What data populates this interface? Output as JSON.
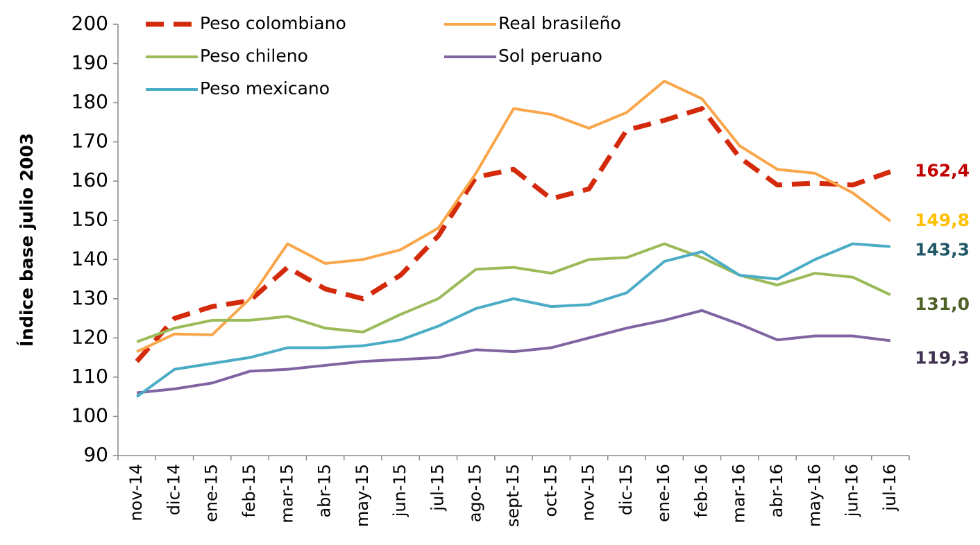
{
  "chart_data": {
    "type": "line",
    "y_label": "Índice base julio 2003",
    "categories": [
      "nov-14",
      "dic-14",
      "ene-15",
      "feb-15",
      "mar-15",
      "abr-15",
      "may-15",
      "jun-15",
      "jul-15",
      "ago-15",
      "sept-15",
      "oct-15",
      "nov-15",
      "dic-15",
      "ene-16",
      "feb-16",
      "mar-16",
      "abr-16",
      "may-16",
      "jun-16",
      "jul-16"
    ],
    "ylim": [
      90,
      200
    ],
    "yticks": [
      90,
      100,
      110,
      120,
      130,
      140,
      150,
      160,
      170,
      180,
      190,
      200
    ],
    "series": [
      {
        "name": "Peso colombiano",
        "color": "#d42a0c",
        "dash": true,
        "label_color": "#c00000",
        "values": [
          114,
          125,
          128,
          129.5,
          138,
          132.5,
          130,
          136,
          146,
          161,
          163,
          155.5,
          158,
          173,
          175.5,
          178.5,
          166,
          159,
          159.5,
          159,
          162.4
        ],
        "value_labels": [
          null,
          null,
          null,
          null,
          null,
          null,
          null,
          null,
          null,
          null,
          null,
          null,
          null,
          null,
          null,
          null,
          null,
          null,
          null,
          null,
          "162,4"
        ]
      },
      {
        "name": "Real brasileño",
        "color": "#f9a64a",
        "dash": false,
        "label_color": "#ffc000",
        "values": [
          116.5,
          121,
          120.8,
          130,
          144,
          139,
          140,
          142.5,
          148,
          162,
          178.5,
          177,
          173.5,
          177.5,
          185.5,
          181,
          169,
          163,
          162,
          157,
          149.8
        ],
        "value_labels": [
          null,
          null,
          null,
          null,
          null,
          null,
          null,
          null,
          null,
          null,
          null,
          null,
          null,
          null,
          null,
          null,
          null,
          null,
          null,
          null,
          "149,8"
        ]
      },
      {
        "name": "Peso chileno",
        "color": "#9bbb59",
        "dash": false,
        "label_color": "#4f6228",
        "values": [
          119,
          122.5,
          124.5,
          124.5,
          125.5,
          122.5,
          121.5,
          126,
          130,
          137.5,
          138,
          136.5,
          140,
          140.5,
          144,
          140.5,
          136,
          133.5,
          136.5,
          135.5,
          131.0
        ],
        "value_labels": [
          null,
          null,
          null,
          null,
          null,
          null,
          null,
          null,
          null,
          null,
          null,
          null,
          null,
          null,
          null,
          null,
          null,
          null,
          null,
          null,
          "131,0"
        ]
      },
      {
        "name": "Sol peruano",
        "color": "#8064a2",
        "dash": false,
        "label_color": "#3f3151",
        "values": [
          106,
          107,
          108.5,
          111.5,
          112,
          113,
          114,
          114.5,
          115,
          117,
          116.5,
          117.5,
          120,
          122.5,
          124.5,
          127,
          123.5,
          119.5,
          120.5,
          120.5,
          119.3
        ],
        "value_labels": [
          null,
          null,
          null,
          null,
          null,
          null,
          null,
          null,
          null,
          null,
          null,
          null,
          null,
          null,
          null,
          null,
          null,
          null,
          null,
          null,
          "119,3"
        ]
      },
      {
        "name": "Peso mexicano",
        "color": "#4bacc6",
        "dash": false,
        "label_color": "#215868",
        "values": [
          105,
          112,
          113.5,
          115,
          117.5,
          117.5,
          118,
          119.5,
          123,
          127.5,
          130,
          128,
          128.5,
          131.5,
          139.5,
          142,
          136,
          135,
          140,
          144,
          143.3
        ],
        "value_labels": [
          null,
          null,
          null,
          null,
          null,
          null,
          null,
          null,
          null,
          null,
          null,
          null,
          null,
          null,
          null,
          null,
          null,
          null,
          null,
          null,
          "143,3"
        ]
      }
    ]
  }
}
